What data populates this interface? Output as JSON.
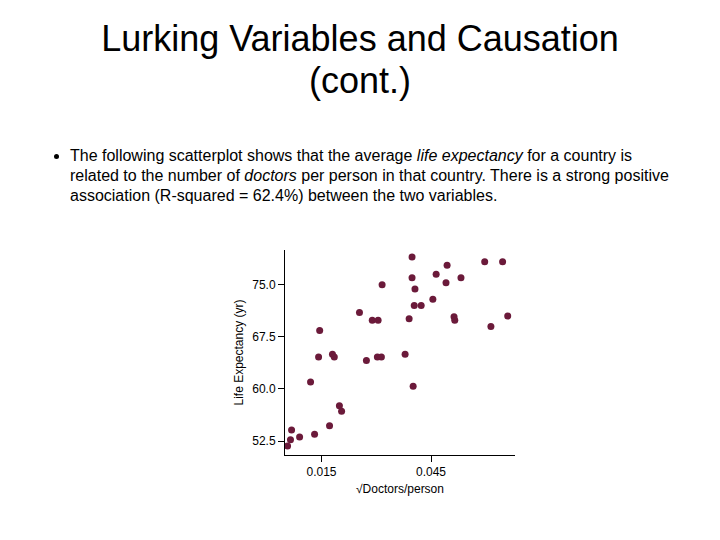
{
  "slide": {
    "title": "Lurking Variables and Causation (cont.)",
    "bullet": [
      {
        "text": "The following scatterplot shows that the average "
      },
      {
        "text": "life expectancy",
        "italic": true
      },
      {
        "text": " for a country is related to the number of "
      },
      {
        "text": "doctors",
        "italic": true
      },
      {
        "text": " per person in that country. There is a strong positive association (R-squared = 62.4%) between the two variables."
      }
    ]
  },
  "chart_data": {
    "type": "scatter",
    "x_label": "√Doctors/person",
    "y_label": "Life Expectancy (yr)",
    "x": [
      0.0057,
      0.0065,
      0.0068,
      0.009,
      0.0131,
      0.0172,
      0.012,
      0.0142,
      0.0145,
      0.018,
      0.0185,
      0.0199,
      0.0205,
      0.0254,
      0.0273,
      0.0289,
      0.0305,
      0.0303,
      0.0314,
      0.0316,
      0.0379,
      0.039,
      0.0401,
      0.0398,
      0.0398,
      0.0406,
      0.0404,
      0.0423,
      0.0455,
      0.0464,
      0.0494,
      0.0491,
      0.0532,
      0.0513,
      0.0515,
      0.0597,
      0.0646,
      0.0614,
      0.066
    ],
    "values": [
      51.8,
      52.7,
      54.1,
      53.1,
      53.5,
      54.7,
      61.0,
      64.6,
      68.4,
      65.0,
      64.6,
      57.6,
      56.8,
      71.0,
      64.1,
      69.9,
      69.9,
      64.6,
      64.6,
      75.0,
      65.0,
      70.1,
      60.4,
      79.0,
      76.0,
      74.4,
      72.0,
      72.0,
      72.9,
      76.5,
      77.8,
      75.3,
      76.0,
      70.4,
      69.9,
      78.3,
      78.3,
      69.0,
      70.5
    ],
    "color": "#6b1a3a",
    "marker": "circle",
    "xlim": [
      0.005,
      0.068
    ],
    "xticks": [
      0.015,
      0.045
    ],
    "ylim": [
      50.5,
      80
    ],
    "yticks": [
      {
        "value": 52.5,
        "label": "52.5"
      },
      {
        "value": 60,
        "label": "60.0"
      },
      {
        "value": 67.5,
        "label": "67.5"
      },
      {
        "value": 75,
        "label": "75.0"
      }
    ],
    "grid": false
  }
}
